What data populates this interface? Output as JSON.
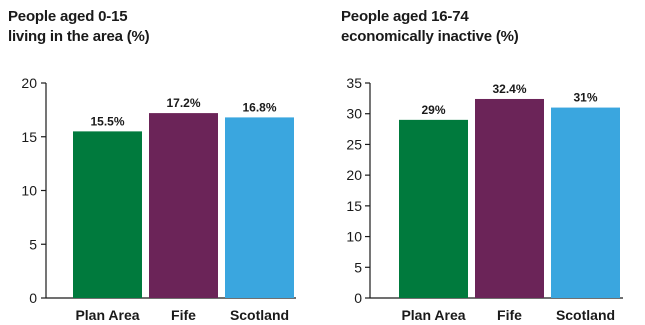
{
  "chart_data": [
    {
      "type": "bar",
      "title_lines": [
        "People aged 0-15",
        "living in the area (%)"
      ],
      "categories": [
        "Plan Area",
        "Fife",
        "Scotland"
      ],
      "values": [
        15.5,
        17.2,
        16.8
      ],
      "data_labels": [
        "15.5%",
        "17.2%",
        "16.8%"
      ],
      "colors": [
        "#007a3d",
        "#6b2458",
        "#3aa6df"
      ],
      "yticks": [
        0,
        5,
        10,
        15,
        20
      ],
      "ylim": [
        0,
        20
      ],
      "grid": false,
      "legend": "none"
    },
    {
      "type": "bar",
      "title_lines": [
        "People aged 16-74",
        "economically inactive (%)"
      ],
      "categories": [
        "Plan Area",
        "Fife",
        "Scotland"
      ],
      "values": [
        29,
        32.4,
        31
      ],
      "data_labels": [
        "29%",
        "32.4%",
        "31%"
      ],
      "colors": [
        "#007a3d",
        "#6b2458",
        "#3aa6df"
      ],
      "yticks": [
        0,
        5,
        10,
        15,
        20,
        25,
        30,
        35
      ],
      "ylim": [
        0,
        35
      ],
      "grid": false,
      "legend": "none"
    }
  ]
}
